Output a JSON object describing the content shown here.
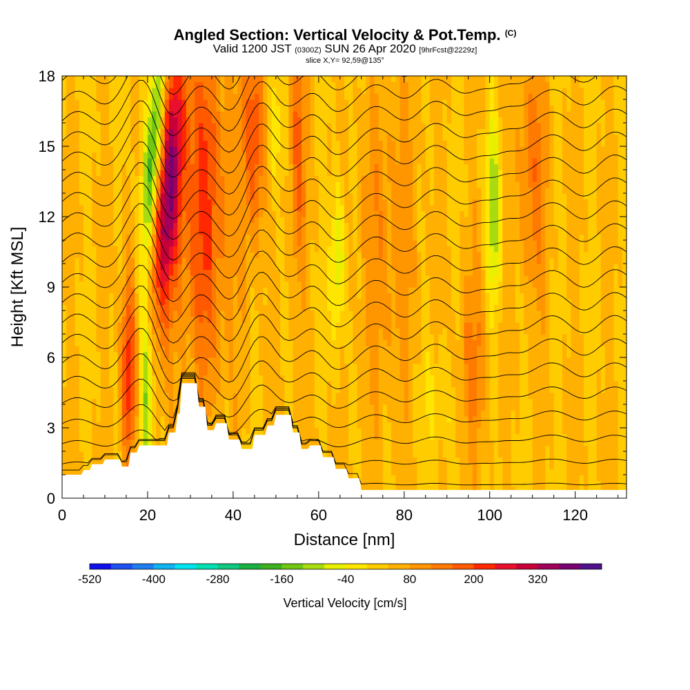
{
  "title": {
    "main": "Angled Section: Vertical Velocity & Pot.Temp.",
    "copyright": "(C)",
    "valid_prefix": "Valid 1200 JST",
    "valid_utc": "(0300Z)",
    "valid_date": "SUN 26 Apr 2020",
    "forecast": "[9hrFcst@2229z]",
    "slice": "slice X,Y= 92,59@135°"
  },
  "chart_data": {
    "type": "heatmap",
    "xlabel": "Distance [nm]",
    "ylabel": "Height [Kft MSL]",
    "xlim": [
      0,
      132
    ],
    "ylim": [
      0,
      18
    ],
    "x_ticks": [
      0,
      20,
      40,
      60,
      80,
      100,
      120
    ],
    "y_ticks": [
      0,
      3,
      6,
      9,
      12,
      15,
      18
    ],
    "colorbar": {
      "label": "Vertical Velocity [cm/s]",
      "min": -520,
      "step": 40,
      "tick_labels": [
        "-520",
        "-400",
        "-280",
        "-160",
        "-40",
        "80",
        "200",
        "320"
      ],
      "tick_values": [
        -520,
        -400,
        -280,
        -160,
        -40,
        80,
        200,
        320
      ],
      "colors": [
        "#1010ee",
        "#1f4ff0",
        "#1f7ff0",
        "#10b4f2",
        "#00e4f0",
        "#00e0b0",
        "#10c880",
        "#18b040",
        "#3cb020",
        "#70c810",
        "#a8dc10",
        "#e8f000",
        "#ffe600",
        "#ffcc00",
        "#ffb000",
        "#ff9600",
        "#ff7a00",
        "#ff5a00",
        "#ff2800",
        "#e8102a",
        "#c80038",
        "#a0005a",
        "#780070",
        "#50108c"
      ]
    },
    "features": {
      "up_strong_x": [
        16,
        25,
        33,
        45,
        55
      ],
      "down_x": [
        19,
        27,
        65,
        101
      ],
      "terrain_peak_kft": 4.9,
      "terrain_peak_x": 30
    }
  }
}
